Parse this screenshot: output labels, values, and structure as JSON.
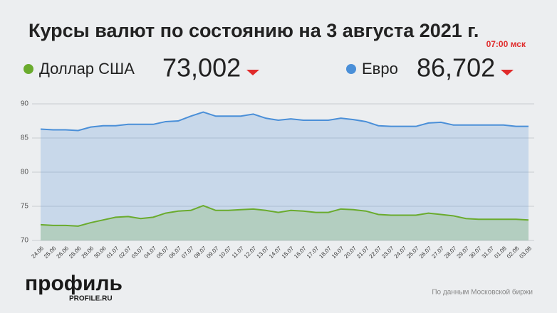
{
  "chart_data": {
    "type": "area",
    "title": "Курсы валют по состоянию на 3 августа 2021 г.",
    "subtitle": "07:00 мск",
    "categories": [
      "24.06",
      "25.06",
      "26.06",
      "28.06",
      "29.06",
      "30.06",
      "01.07",
      "02.07",
      "03.07",
      "04.07",
      "05.07",
      "06.07",
      "07.07",
      "08.07",
      "09.07",
      "10.07",
      "11.07",
      "12.07",
      "13.07",
      "14.07",
      "15.07",
      "16.07",
      "17.07",
      "18.07",
      "19.07",
      "20.07",
      "21.07",
      "22.07",
      "23.07",
      "24.07",
      "25.07",
      "26.07",
      "27.07",
      "28.07",
      "29.07",
      "30.07",
      "31.07",
      "01.08",
      "02.08",
      "03.08"
    ],
    "series": [
      {
        "name": "Евро",
        "color": "#4a8fd8",
        "current": "86,702",
        "values": [
          86.3,
          86.2,
          86.2,
          86.1,
          86.6,
          86.8,
          86.8,
          87.0,
          87.0,
          87.0,
          87.4,
          87.5,
          88.2,
          88.8,
          88.2,
          88.2,
          88.2,
          88.5,
          87.9,
          87.6,
          87.8,
          87.6,
          87.6,
          87.6,
          87.9,
          87.7,
          87.4,
          86.8,
          86.7,
          86.7,
          86.7,
          87.2,
          87.3,
          86.9,
          86.9,
          86.9,
          86.9,
          86.9,
          86.7,
          86.7
        ]
      },
      {
        "name": "Доллар США",
        "color": "#6aab2d",
        "current": "73,002",
        "values": [
          72.3,
          72.2,
          72.2,
          72.1,
          72.6,
          73.0,
          73.4,
          73.5,
          73.2,
          73.4,
          74.0,
          74.3,
          74.4,
          75.1,
          74.4,
          74.4,
          74.5,
          74.6,
          74.4,
          74.1,
          74.4,
          74.3,
          74.1,
          74.1,
          74.6,
          74.5,
          74.3,
          73.8,
          73.7,
          73.7,
          73.7,
          74.0,
          73.8,
          73.6,
          73.2,
          73.1,
          73.1,
          73.1,
          73.1,
          73.0
        ]
      }
    ],
    "ylim": [
      70,
      90
    ],
    "yticks": [
      70,
      75,
      80,
      85,
      90
    ],
    "grid": true,
    "logo": "профиль",
    "logo_url": "PROFILE.RU",
    "source": "По данным Московской биржи"
  }
}
